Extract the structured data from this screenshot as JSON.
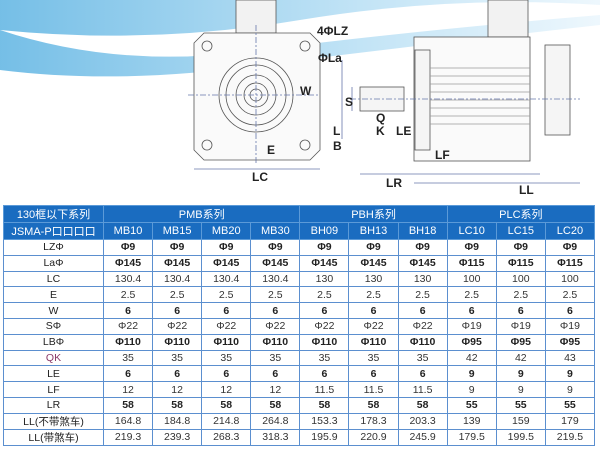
{
  "drawing_labels": {
    "lz": "4ΦLZ",
    "la": "ΦLa",
    "w": "W",
    "s": "S",
    "q": "Q",
    "k": "K",
    "le": "LE",
    "l": "L",
    "b": "B",
    "e": "E",
    "lc": "LC",
    "lf": "LF",
    "lr": "LR",
    "ll": "LL"
  },
  "table": {
    "corner": [
      "130框以下系列",
      "JSMA-P口口口口"
    ],
    "groups": [
      "PMB系列",
      "PBH系列",
      "PLC系列"
    ],
    "models": [
      "MB10",
      "MB15",
      "MB20",
      "MB30",
      "BH09",
      "BH13",
      "BH18",
      "LC10",
      "LC15",
      "LC20"
    ],
    "rows": [
      {
        "label": "LZΦ",
        "values": [
          "Φ9",
          "Φ9",
          "Φ9",
          "Φ9",
          "Φ9",
          "Φ9",
          "Φ9",
          "Φ9",
          "Φ9",
          "Φ9"
        ]
      },
      {
        "label": "LaΦ",
        "values": [
          "Φ145",
          "Φ145",
          "Φ145",
          "Φ145",
          "Φ145",
          "Φ145",
          "Φ145",
          "Φ115",
          "Φ115",
          "Φ115"
        ]
      },
      {
        "label": "LC",
        "values": [
          "130.4",
          "130.4",
          "130.4",
          "130.4",
          "130",
          "130",
          "130",
          "100",
          "100",
          "100"
        ]
      },
      {
        "label": "E",
        "values": [
          "2.5",
          "2.5",
          "2.5",
          "2.5",
          "2.5",
          "2.5",
          "2.5",
          "2.5",
          "2.5",
          "2.5"
        ]
      },
      {
        "label": "W",
        "values": [
          "6",
          "6",
          "6",
          "6",
          "6",
          "6",
          "6",
          "6",
          "6",
          "6"
        ]
      },
      {
        "label": "SΦ",
        "values": [
          "Φ22",
          "Φ22",
          "Φ22",
          "Φ22",
          "Φ22",
          "Φ22",
          "Φ22",
          "Φ19",
          "Φ19",
          "Φ19"
        ]
      },
      {
        "label": "LBΦ",
        "values": [
          "Φ110",
          "Φ110",
          "Φ110",
          "Φ110",
          "Φ110",
          "Φ110",
          "Φ110",
          "Φ95",
          "Φ95",
          "Φ95"
        ]
      },
      {
        "label": "QK",
        "values": [
          "35",
          "35",
          "35",
          "35",
          "35",
          "35",
          "35",
          "42",
          "42",
          "43"
        ]
      },
      {
        "label": "LE",
        "values": [
          "6",
          "6",
          "6",
          "6",
          "6",
          "6",
          "6",
          "9",
          "9",
          "9"
        ]
      },
      {
        "label": "LF",
        "values": [
          "12",
          "12",
          "12",
          "12",
          "11.5",
          "11.5",
          "11.5",
          "9",
          "9",
          "9"
        ]
      },
      {
        "label": "LR",
        "values": [
          "58",
          "58",
          "58",
          "58",
          "58",
          "58",
          "58",
          "55",
          "55",
          "55"
        ]
      },
      {
        "label": "LL(不带煞车)",
        "values": [
          "164.8",
          "184.8",
          "214.8",
          "264.8",
          "153.3",
          "178.3",
          "203.3",
          "139",
          "159",
          "179"
        ]
      },
      {
        "label": "LL(带煞车)",
        "values": [
          "219.3",
          "239.3",
          "268.3",
          "318.3",
          "195.9",
          "220.9",
          "245.9",
          "179.5",
          "199.5",
          "219.5"
        ]
      }
    ]
  },
  "colors": {
    "header": "#1a6cc0",
    "border": "#5b8fcf"
  }
}
